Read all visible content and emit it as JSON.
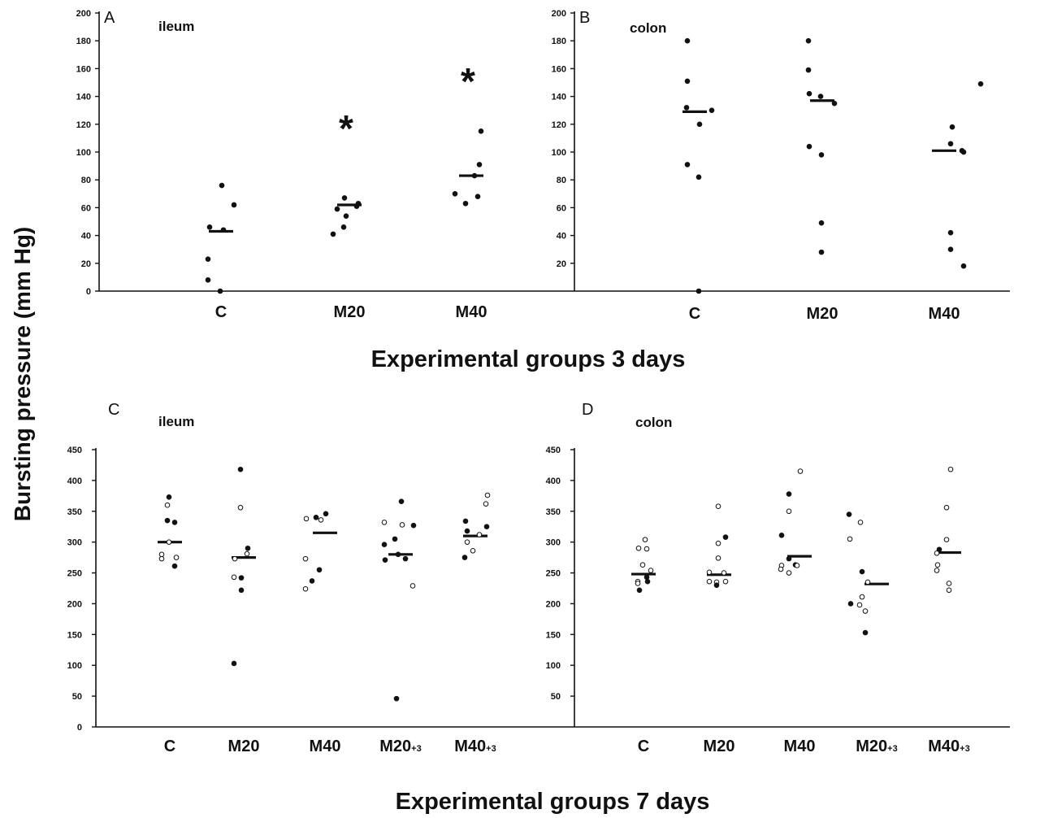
{
  "ylabel": "Bursting pressure  (mm Hg)",
  "group_titles": [
    "Experimental groups 3 days",
    "Experimental groups 7 days"
  ],
  "colors": {
    "ink": "#111111",
    "open_fill": "#ffffff"
  },
  "chart_data": [
    {
      "type": "scatter",
      "panel": "A",
      "title": "ileum",
      "categories": [
        "C",
        "M20",
        "M40"
      ],
      "ylim": [
        0,
        200
      ],
      "yticks": [
        0,
        20,
        40,
        60,
        80,
        100,
        120,
        140,
        160,
        180,
        200
      ],
      "medians": [
        43,
        62,
        83
      ],
      "significance": [
        "",
        "*",
        "*"
      ],
      "points": [
        {
          "cat": 0,
          "dx": -14,
          "y": 46,
          "style": "filled"
        },
        {
          "cat": 0,
          "dx": 1,
          "y": 76,
          "style": "filled"
        },
        {
          "cat": 0,
          "dx": 3,
          "y": 44,
          "style": "filled"
        },
        {
          "cat": 0,
          "dx": 16,
          "y": 62,
          "style": "filled"
        },
        {
          "cat": 0,
          "dx": -16,
          "y": 23,
          "style": "filled"
        },
        {
          "cat": 0,
          "dx": -16,
          "y": 8,
          "style": "filled"
        },
        {
          "cat": 0,
          "dx": -1,
          "y": 0,
          "style": "filled"
        },
        {
          "cat": 1,
          "dx": -6,
          "y": 67,
          "style": "filled"
        },
        {
          "cat": 1,
          "dx": 11,
          "y": 63,
          "style": "filled"
        },
        {
          "cat": 1,
          "dx": 9,
          "y": 61,
          "style": "filled"
        },
        {
          "cat": 1,
          "dx": -15,
          "y": 59,
          "style": "filled"
        },
        {
          "cat": 1,
          "dx": -4,
          "y": 54,
          "style": "filled"
        },
        {
          "cat": 1,
          "dx": -7,
          "y": 46,
          "style": "filled"
        },
        {
          "cat": 1,
          "dx": -20,
          "y": 41,
          "style": "filled"
        },
        {
          "cat": 2,
          "dx": 12,
          "y": 115,
          "style": "filled"
        },
        {
          "cat": 2,
          "dx": 10,
          "y": 91,
          "style": "filled"
        },
        {
          "cat": 2,
          "dx": 4,
          "y": 83,
          "style": "filled"
        },
        {
          "cat": 2,
          "dx": -20,
          "y": 70,
          "style": "filled"
        },
        {
          "cat": 2,
          "dx": 8,
          "y": 68,
          "style": "filled"
        },
        {
          "cat": 2,
          "dx": -7,
          "y": 63,
          "style": "filled"
        }
      ]
    },
    {
      "type": "scatter",
      "panel": "B",
      "title": "colon",
      "categories": [
        "C",
        "M20",
        "M40"
      ],
      "ylim": [
        0,
        200
      ],
      "yticks": [
        20,
        40,
        60,
        80,
        100,
        120,
        140,
        160,
        180,
        200
      ],
      "medians": [
        129,
        137,
        101
      ],
      "significance": [
        "",
        "",
        ""
      ],
      "points": [
        {
          "cat": 0,
          "dx": -9,
          "y": 180,
          "style": "filled"
        },
        {
          "cat": 0,
          "dx": -9,
          "y": 151,
          "style": "filled"
        },
        {
          "cat": 0,
          "dx": -10,
          "y": 132,
          "style": "filled"
        },
        {
          "cat": 0,
          "dx": 21,
          "y": 130,
          "style": "filled"
        },
        {
          "cat": 0,
          "dx": 6,
          "y": 120,
          "style": "filled"
        },
        {
          "cat": 0,
          "dx": -9,
          "y": 91,
          "style": "filled"
        },
        {
          "cat": 0,
          "dx": 5,
          "y": 82,
          "style": "filled"
        },
        {
          "cat": 0,
          "dx": 5,
          "y": 0,
          "style": "filled"
        },
        {
          "cat": 1,
          "dx": -17,
          "y": 180,
          "style": "filled"
        },
        {
          "cat": 1,
          "dx": -17,
          "y": 159,
          "style": "filled"
        },
        {
          "cat": 1,
          "dx": -16,
          "y": 142,
          "style": "filled"
        },
        {
          "cat": 1,
          "dx": -2,
          "y": 140,
          "style": "filled"
        },
        {
          "cat": 1,
          "dx": 15,
          "y": 135,
          "style": "filled"
        },
        {
          "cat": 1,
          "dx": -16,
          "y": 104,
          "style": "filled"
        },
        {
          "cat": 1,
          "dx": -1,
          "y": 98,
          "style": "filled"
        },
        {
          "cat": 1,
          "dx": -1,
          "y": 49,
          "style": "filled"
        },
        {
          "cat": 1,
          "dx": -1,
          "y": 28,
          "style": "filled"
        },
        {
          "cat": 2,
          "dx": 45,
          "y": 149,
          "style": "filled"
        },
        {
          "cat": 2,
          "dx": 10,
          "y": 118,
          "style": "filled"
        },
        {
          "cat": 2,
          "dx": 8,
          "y": 106,
          "style": "filled"
        },
        {
          "cat": 2,
          "dx": 22,
          "y": 101,
          "style": "filled"
        },
        {
          "cat": 2,
          "dx": 24,
          "y": 100,
          "style": "filled"
        },
        {
          "cat": 2,
          "dx": 8,
          "y": 42,
          "style": "filled"
        },
        {
          "cat": 2,
          "dx": 8,
          "y": 30,
          "style": "filled"
        },
        {
          "cat": 2,
          "dx": 24,
          "y": 18,
          "style": "filled"
        }
      ]
    },
    {
      "type": "scatter",
      "panel": "C",
      "title": "ileum",
      "categories": [
        "C",
        "M20",
        "M40",
        "M20+3",
        "M40+3"
      ],
      "ylim": [
        0,
        450
      ],
      "yticks": [
        0,
        50,
        100,
        150,
        200,
        250,
        300,
        350,
        400,
        450
      ],
      "medians": [
        300,
        275,
        315,
        280,
        310
      ],
      "significance": [
        "",
        "",
        "",
        "",
        ""
      ],
      "points": [
        {
          "cat": 0,
          "dx": -1,
          "y": 373,
          "style": "filled"
        },
        {
          "cat": 0,
          "dx": -3,
          "y": 360,
          "style": "open"
        },
        {
          "cat": 0,
          "dx": -3,
          "y": 335,
          "style": "filled"
        },
        {
          "cat": 0,
          "dx": 6,
          "y": 332,
          "style": "filled"
        },
        {
          "cat": 0,
          "dx": -1,
          "y": 300,
          "style": "open"
        },
        {
          "cat": 0,
          "dx": -10,
          "y": 280,
          "style": "open"
        },
        {
          "cat": 0,
          "dx": -10,
          "y": 273,
          "style": "open"
        },
        {
          "cat": 0,
          "dx": 8,
          "y": 275,
          "style": "open"
        },
        {
          "cat": 0,
          "dx": 6,
          "y": 261,
          "style": "filled"
        },
        {
          "cat": 1,
          "dx": -4,
          "y": 418,
          "style": "filled"
        },
        {
          "cat": 1,
          "dx": -4,
          "y": 356,
          "style": "open"
        },
        {
          "cat": 1,
          "dx": 5,
          "y": 290,
          "style": "filled"
        },
        {
          "cat": 1,
          "dx": 4,
          "y": 281,
          "style": "open"
        },
        {
          "cat": 1,
          "dx": -11,
          "y": 273,
          "style": "open"
        },
        {
          "cat": 1,
          "dx": -12,
          "y": 243,
          "style": "open"
        },
        {
          "cat": 1,
          "dx": -3,
          "y": 242,
          "style": "filled"
        },
        {
          "cat": 1,
          "dx": -3,
          "y": 222,
          "style": "filled"
        },
        {
          "cat": 1,
          "dx": -12,
          "y": 103,
          "style": "filled"
        },
        {
          "cat": 2,
          "dx": -23,
          "y": 338,
          "style": "open"
        },
        {
          "cat": 2,
          "dx": -11,
          "y": 340,
          "style": "filled"
        },
        {
          "cat": 2,
          "dx": -5,
          "y": 336,
          "style": "open"
        },
        {
          "cat": 2,
          "dx": 1,
          "y": 346,
          "style": "filled"
        },
        {
          "cat": 2,
          "dx": -24,
          "y": 273,
          "style": "open"
        },
        {
          "cat": 2,
          "dx": -7,
          "y": 255,
          "style": "filled"
        },
        {
          "cat": 2,
          "dx": -16,
          "y": 237,
          "style": "filled"
        },
        {
          "cat": 2,
          "dx": -24,
          "y": 224,
          "style": "open"
        },
        {
          "cat": 3,
          "dx": 1,
          "y": 366,
          "style": "filled"
        },
        {
          "cat": 3,
          "dx": -20,
          "y": 332,
          "style": "open"
        },
        {
          "cat": 3,
          "dx": 2,
          "y": 328,
          "style": "open"
        },
        {
          "cat": 3,
          "dx": 16,
          "y": 327,
          "style": "filled"
        },
        {
          "cat": 3,
          "dx": -7,
          "y": 305,
          "style": "filled"
        },
        {
          "cat": 3,
          "dx": -20,
          "y": 296,
          "style": "filled"
        },
        {
          "cat": 3,
          "dx": -3,
          "y": 280,
          "style": "filled"
        },
        {
          "cat": 3,
          "dx": 6,
          "y": 273,
          "style": "filled"
        },
        {
          "cat": 3,
          "dx": -19,
          "y": 271,
          "style": "filled"
        },
        {
          "cat": 3,
          "dx": 15,
          "y": 229,
          "style": "open"
        },
        {
          "cat": 3,
          "dx": -5,
          "y": 46,
          "style": "filled"
        },
        {
          "cat": 4,
          "dx": 15,
          "y": 376,
          "style": "open"
        },
        {
          "cat": 4,
          "dx": 13,
          "y": 362,
          "style": "open"
        },
        {
          "cat": 4,
          "dx": -12,
          "y": 334,
          "style": "filled"
        },
        {
          "cat": 4,
          "dx": 14,
          "y": 325,
          "style": "filled"
        },
        {
          "cat": 4,
          "dx": -10,
          "y": 318,
          "style": "filled"
        },
        {
          "cat": 4,
          "dx": 5,
          "y": 312,
          "style": "open"
        },
        {
          "cat": 4,
          "dx": -10,
          "y": 300,
          "style": "open"
        },
        {
          "cat": 4,
          "dx": -3,
          "y": 286,
          "style": "open"
        },
        {
          "cat": 4,
          "dx": -13,
          "y": 275,
          "style": "filled"
        }
      ]
    },
    {
      "type": "scatter",
      "panel": "D",
      "title": "colon",
      "categories": [
        "C",
        "M20",
        "M40",
        "M20+3",
        "M40+3"
      ],
      "ylim": [
        0,
        450
      ],
      "yticks": [
        50,
        100,
        150,
        200,
        250,
        300,
        350,
        400,
        450
      ],
      "medians": [
        248,
        247,
        277,
        232,
        283
      ],
      "significance": [
        "",
        "",
        "",
        "",
        ""
      ],
      "points": [
        {
          "cat": 0,
          "dx": 2,
          "y": 304,
          "style": "open"
        },
        {
          "cat": 0,
          "dx": -6,
          "y": 290,
          "style": "open"
        },
        {
          "cat": 0,
          "dx": 4,
          "y": 289,
          "style": "open"
        },
        {
          "cat": 0,
          "dx": -1,
          "y": 263,
          "style": "open"
        },
        {
          "cat": 0,
          "dx": 9,
          "y": 254,
          "style": "open"
        },
        {
          "cat": 0,
          "dx": 4,
          "y": 243,
          "style": "filled"
        },
        {
          "cat": 0,
          "dx": -7,
          "y": 236,
          "style": "open"
        },
        {
          "cat": 0,
          "dx": 5,
          "y": 236,
          "style": "filled"
        },
        {
          "cat": 0,
          "dx": -7,
          "y": 233,
          "style": "open"
        },
        {
          "cat": 0,
          "dx": -5,
          "y": 222,
          "style": "filled"
        },
        {
          "cat": 1,
          "dx": -1,
          "y": 358,
          "style": "open"
        },
        {
          "cat": 1,
          "dx": 8,
          "y": 308,
          "style": "filled"
        },
        {
          "cat": 1,
          "dx": -1,
          "y": 298,
          "style": "open"
        },
        {
          "cat": 1,
          "dx": -1,
          "y": 274,
          "style": "open"
        },
        {
          "cat": 1,
          "dx": -12,
          "y": 251,
          "style": "open"
        },
        {
          "cat": 1,
          "dx": 6,
          "y": 250,
          "style": "open"
        },
        {
          "cat": 1,
          "dx": -12,
          "y": 236,
          "style": "open"
        },
        {
          "cat": 1,
          "dx": -3,
          "y": 235,
          "style": "open"
        },
        {
          "cat": 1,
          "dx": 8,
          "y": 236,
          "style": "open"
        },
        {
          "cat": 1,
          "dx": -3,
          "y": 230,
          "style": "filled"
        },
        {
          "cat": 2,
          "dx": 1,
          "y": 415,
          "style": "open"
        },
        {
          "cat": 2,
          "dx": -13,
          "y": 378,
          "style": "filled"
        },
        {
          "cat": 2,
          "dx": -13,
          "y": 350,
          "style": "open"
        },
        {
          "cat": 2,
          "dx": -22,
          "y": 311,
          "style": "filled"
        },
        {
          "cat": 2,
          "dx": -13,
          "y": 273,
          "style": "filled"
        },
        {
          "cat": 2,
          "dx": -5,
          "y": 263,
          "style": "filled"
        },
        {
          "cat": 2,
          "dx": -22,
          "y": 262,
          "style": "open"
        },
        {
          "cat": 2,
          "dx": -3,
          "y": 262,
          "style": "open"
        },
        {
          "cat": 2,
          "dx": -23,
          "y": 256,
          "style": "open"
        },
        {
          "cat": 2,
          "dx": -13,
          "y": 250,
          "style": "open"
        },
        {
          "cat": 3,
          "dx": -34,
          "y": 345,
          "style": "filled"
        },
        {
          "cat": 3,
          "dx": -20,
          "y": 332,
          "style": "open"
        },
        {
          "cat": 3,
          "dx": -33,
          "y": 305,
          "style": "open"
        },
        {
          "cat": 3,
          "dx": -18,
          "y": 252,
          "style": "filled"
        },
        {
          "cat": 3,
          "dx": -11,
          "y": 235,
          "style": "open"
        },
        {
          "cat": 3,
          "dx": -18,
          "y": 211,
          "style": "open"
        },
        {
          "cat": 3,
          "dx": -32,
          "y": 200,
          "style": "filled"
        },
        {
          "cat": 3,
          "dx": -21,
          "y": 198,
          "style": "open"
        },
        {
          "cat": 3,
          "dx": -14,
          "y": 188,
          "style": "open"
        },
        {
          "cat": 3,
          "dx": -14,
          "y": 153,
          "style": "filled"
        },
        {
          "cat": 4,
          "dx": 2,
          "y": 418,
          "style": "open"
        },
        {
          "cat": 4,
          "dx": -3,
          "y": 356,
          "style": "open"
        },
        {
          "cat": 4,
          "dx": -3,
          "y": 304,
          "style": "open"
        },
        {
          "cat": 4,
          "dx": -12,
          "y": 288,
          "style": "filled"
        },
        {
          "cat": 4,
          "dx": -15,
          "y": 282,
          "style": "open"
        },
        {
          "cat": 4,
          "dx": -14,
          "y": 263,
          "style": "open"
        },
        {
          "cat": 4,
          "dx": -15,
          "y": 254,
          "style": "open"
        },
        {
          "cat": 4,
          "dx": 0,
          "y": 233,
          "style": "open"
        },
        {
          "cat": 4,
          "dx": 0,
          "y": 222,
          "style": "open"
        }
      ]
    }
  ]
}
